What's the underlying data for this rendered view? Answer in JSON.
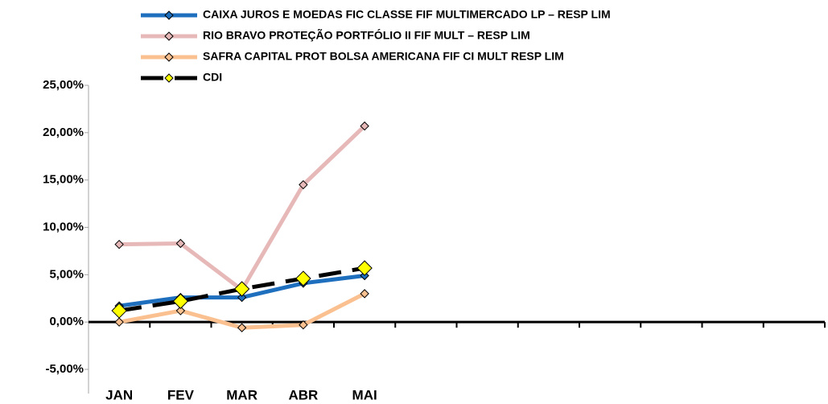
{
  "chart_data": {
    "type": "line",
    "categories": [
      "JAN",
      "FEV",
      "MAR",
      "ABR",
      "MAI",
      null,
      null,
      null,
      null,
      null,
      null,
      null
    ],
    "series": [
      {
        "name": "CAIXA JUROS E MOEDAS FIC CLASSE FIF MULTIMERCADO LP – RESP LIM",
        "color": "#1f6fbf",
        "values": [
          1.7,
          2.6,
          2.6,
          4.1,
          4.9,
          null,
          null,
          null,
          null,
          null,
          null,
          null
        ]
      },
      {
        "name": "RIO BRAVO PROTEÇÃO PORTFÓLIO II FIF MULT – RESP LIM",
        "color": "#e6b8b7",
        "values": [
          8.2,
          8.3,
          3.4,
          14.5,
          20.7,
          null,
          null,
          null,
          null,
          null,
          null,
          null
        ]
      },
      {
        "name": "SAFRA CAPITAL PROT BOLSA AMERICANA FIF CI MULT RESP LIM",
        "color": "#fac090",
        "values": [
          0.0,
          1.2,
          -0.6,
          -0.3,
          3.0,
          null,
          null,
          null,
          null,
          null,
          null,
          null
        ]
      },
      {
        "name": "CDI",
        "color": "#000000",
        "marker_color": "#ffff00",
        "dashed": true,
        "values": [
          1.2,
          2.2,
          3.5,
          4.6,
          5.7,
          null,
          null,
          null,
          null,
          null,
          null,
          null
        ]
      }
    ],
    "ylim": [
      -5,
      25
    ],
    "yticks": [
      {
        "value": -5,
        "label": "-5,00%"
      },
      {
        "value": 0,
        "label": "0,00%"
      },
      {
        "value": 5,
        "label": "5,00%"
      },
      {
        "value": 10,
        "label": "10,00%"
      },
      {
        "value": 15,
        "label": "15,00%"
      },
      {
        "value": 20,
        "label": "20,00%"
      },
      {
        "value": 25,
        "label": "25,00%"
      }
    ],
    "grid": false
  }
}
